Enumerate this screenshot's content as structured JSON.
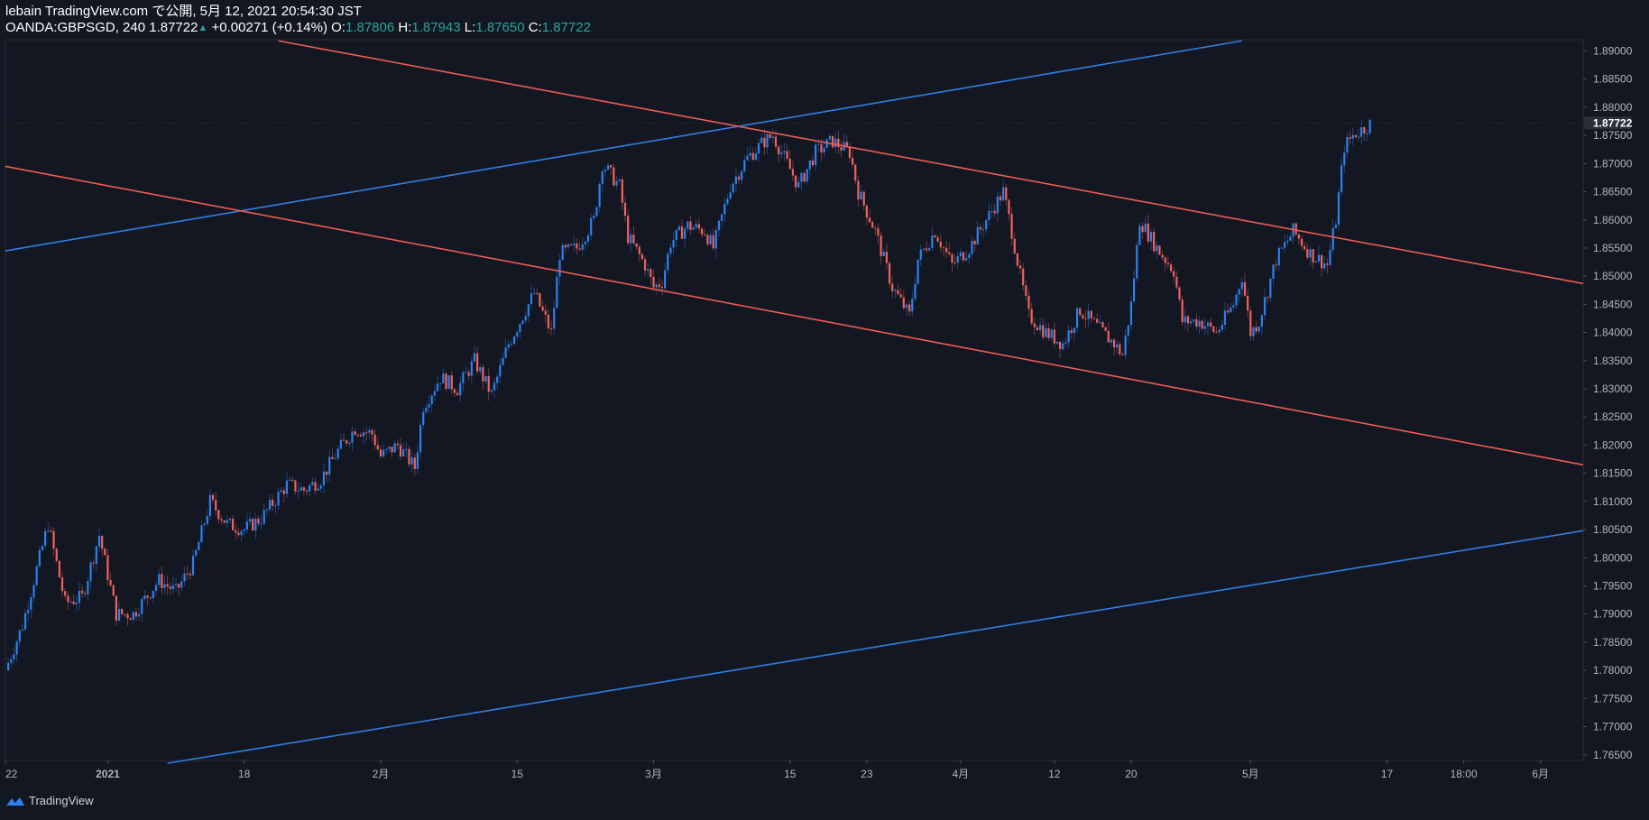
{
  "header": {
    "line1": "lebain TradingView.com で公開, 5月 12, 2021 20:54:30 JST",
    "symbol_interval": "OANDA:GBPSGD, 240",
    "last": "1.87722",
    "change_arrow": "▲",
    "change": "+0.00271 (+0.14%)",
    "o_label": "O:",
    "o_value": "1.87806",
    "h_label": "H:",
    "h_value": "1.87943",
    "l_label": "L:",
    "l_value": "1.87650",
    "c_label": "C:",
    "c_value": "1.87722"
  },
  "footer": {
    "brand": "TradingView",
    "logo_icon": "tradingview-logo-icon"
  },
  "colors": {
    "background": "#131722",
    "up": "#2f80ed",
    "down": "#f0625d",
    "teal": "#26a69a",
    "text": "#d1d4dc"
  },
  "chart_data": {
    "type": "candlestick",
    "symbol": "OANDA:GBPSGD",
    "interval": "240",
    "ylim": [
      1.764,
      1.892
    ],
    "yticks": [
      "1.89000",
      "1.88500",
      "1.88000",
      "1.87500",
      "1.87000",
      "1.86500",
      "1.86000",
      "1.85500",
      "1.85000",
      "1.84500",
      "1.84000",
      "1.83500",
      "1.83000",
      "1.82500",
      "1.82000",
      "1.81500",
      "1.81000",
      "1.80500",
      "1.80000",
      "1.79500",
      "1.79000",
      "1.78500",
      "1.78000",
      "1.77500",
      "1.77000",
      "1.76500"
    ],
    "current_price_label": "1.87722",
    "current_price": 1.87722,
    "x_ticks": [
      {
        "label": "22",
        "i": 0
      },
      {
        "label": "2021",
        "i": 12
      },
      {
        "label": "18",
        "i": 28
      },
      {
        "label": "2月",
        "i": 44
      },
      {
        "label": "15",
        "i": 60
      },
      {
        "label": "3月",
        "i": 76
      },
      {
        "label": "15",
        "i": 92
      },
      {
        "label": "23",
        "i": 101
      },
      {
        "label": "4月",
        "i": 112
      },
      {
        "label": "12",
        "i": 123
      },
      {
        "label": "20",
        "i": 132
      },
      {
        "label": "5月",
        "i": 146
      },
      {
        "label": "17",
        "i": 162
      },
      {
        "label": "18:00",
        "i": 171
      },
      {
        "label": "6月",
        "i": 180
      }
    ],
    "x_count": 185,
    "close_path": [
      [
        0,
        1.78
      ],
      [
        2,
        1.788
      ],
      [
        5,
        1.806
      ],
      [
        7,
        1.792
      ],
      [
        9,
        1.793
      ],
      [
        11,
        1.804
      ],
      [
        13,
        1.79
      ],
      [
        15,
        1.79
      ],
      [
        18,
        1.796
      ],
      [
        20,
        1.794
      ],
      [
        22,
        1.799
      ],
      [
        24,
        1.81
      ],
      [
        26,
        1.806
      ],
      [
        28,
        1.805
      ],
      [
        30,
        1.807
      ],
      [
        33,
        1.813
      ],
      [
        35,
        1.812
      ],
      [
        37,
        1.814
      ],
      [
        39,
        1.819
      ],
      [
        41,
        1.823
      ],
      [
        43,
        1.822
      ],
      [
        44,
        1.818
      ],
      [
        46,
        1.82
      ],
      [
        48,
        1.816
      ],
      [
        49,
        1.827
      ],
      [
        51,
        1.832
      ],
      [
        53,
        1.83
      ],
      [
        55,
        1.835
      ],
      [
        57,
        1.829
      ],
      [
        59,
        1.838
      ],
      [
        61,
        1.844
      ],
      [
        62,
        1.847
      ],
      [
        64,
        1.84
      ],
      [
        65,
        1.854
      ],
      [
        67,
        1.855
      ],
      [
        69,
        1.86
      ],
      [
        70,
        1.87
      ],
      [
        72,
        1.866
      ],
      [
        73,
        1.857
      ],
      [
        75,
        1.852
      ],
      [
        76,
        1.848
      ],
      [
        77,
        1.849
      ],
      [
        78,
        1.856
      ],
      [
        80,
        1.859
      ],
      [
        82,
        1.858
      ],
      [
        83,
        1.855
      ],
      [
        85,
        1.866
      ],
      [
        87,
        1.871
      ],
      [
        89,
        1.874
      ],
      [
        90,
        1.875
      ],
      [
        92,
        1.869
      ],
      [
        93,
        1.866
      ],
      [
        95,
        1.872
      ],
      [
        97,
        1.874
      ],
      [
        99,
        1.872
      ],
      [
        100,
        1.865
      ],
      [
        102,
        1.858
      ],
      [
        104,
        1.848
      ],
      [
        106,
        1.843
      ],
      [
        107,
        1.853
      ],
      [
        109,
        1.858
      ],
      [
        111,
        1.852
      ],
      [
        113,
        1.855
      ],
      [
        115,
        1.86
      ],
      [
        117,
        1.865
      ],
      [
        118,
        1.858
      ],
      [
        119,
        1.85
      ],
      [
        120,
        1.843
      ],
      [
        122,
        1.84
      ],
      [
        124,
        1.838
      ],
      [
        126,
        1.844
      ],
      [
        128,
        1.841
      ],
      [
        130,
        1.838
      ],
      [
        131,
        1.836
      ],
      [
        132,
        1.845
      ],
      [
        133,
        1.86
      ],
      [
        135,
        1.855
      ],
      [
        137,
        1.851
      ],
      [
        138,
        1.842
      ],
      [
        140,
        1.842
      ],
      [
        142,
        1.84
      ],
      [
        144,
        1.845
      ],
      [
        145,
        1.85
      ],
      [
        146,
        1.84
      ],
      [
        147,
        1.842
      ],
      [
        149,
        1.853
      ],
      [
        151,
        1.858
      ],
      [
        153,
        1.854
      ],
      [
        155,
        1.852
      ],
      [
        156,
        1.86
      ],
      [
        157,
        1.873
      ],
      [
        158,
        1.875
      ],
      [
        160,
        1.877
      ]
    ],
    "trendlines": [
      {
        "color": "blue",
        "from": [
          0,
          1.8545
        ],
        "to": [
          145,
          1.8918
        ]
      },
      {
        "color": "blue",
        "from": [
          19,
          1.7635
        ],
        "to": [
          185,
          1.8048
        ]
      },
      {
        "color": "red",
        "from": [
          32,
          1.8918
        ],
        "to": [
          185,
          1.8487
        ]
      },
      {
        "color": "red",
        "from": [
          0,
          1.8695
        ],
        "to": [
          185,
          1.8165
        ]
      }
    ]
  }
}
